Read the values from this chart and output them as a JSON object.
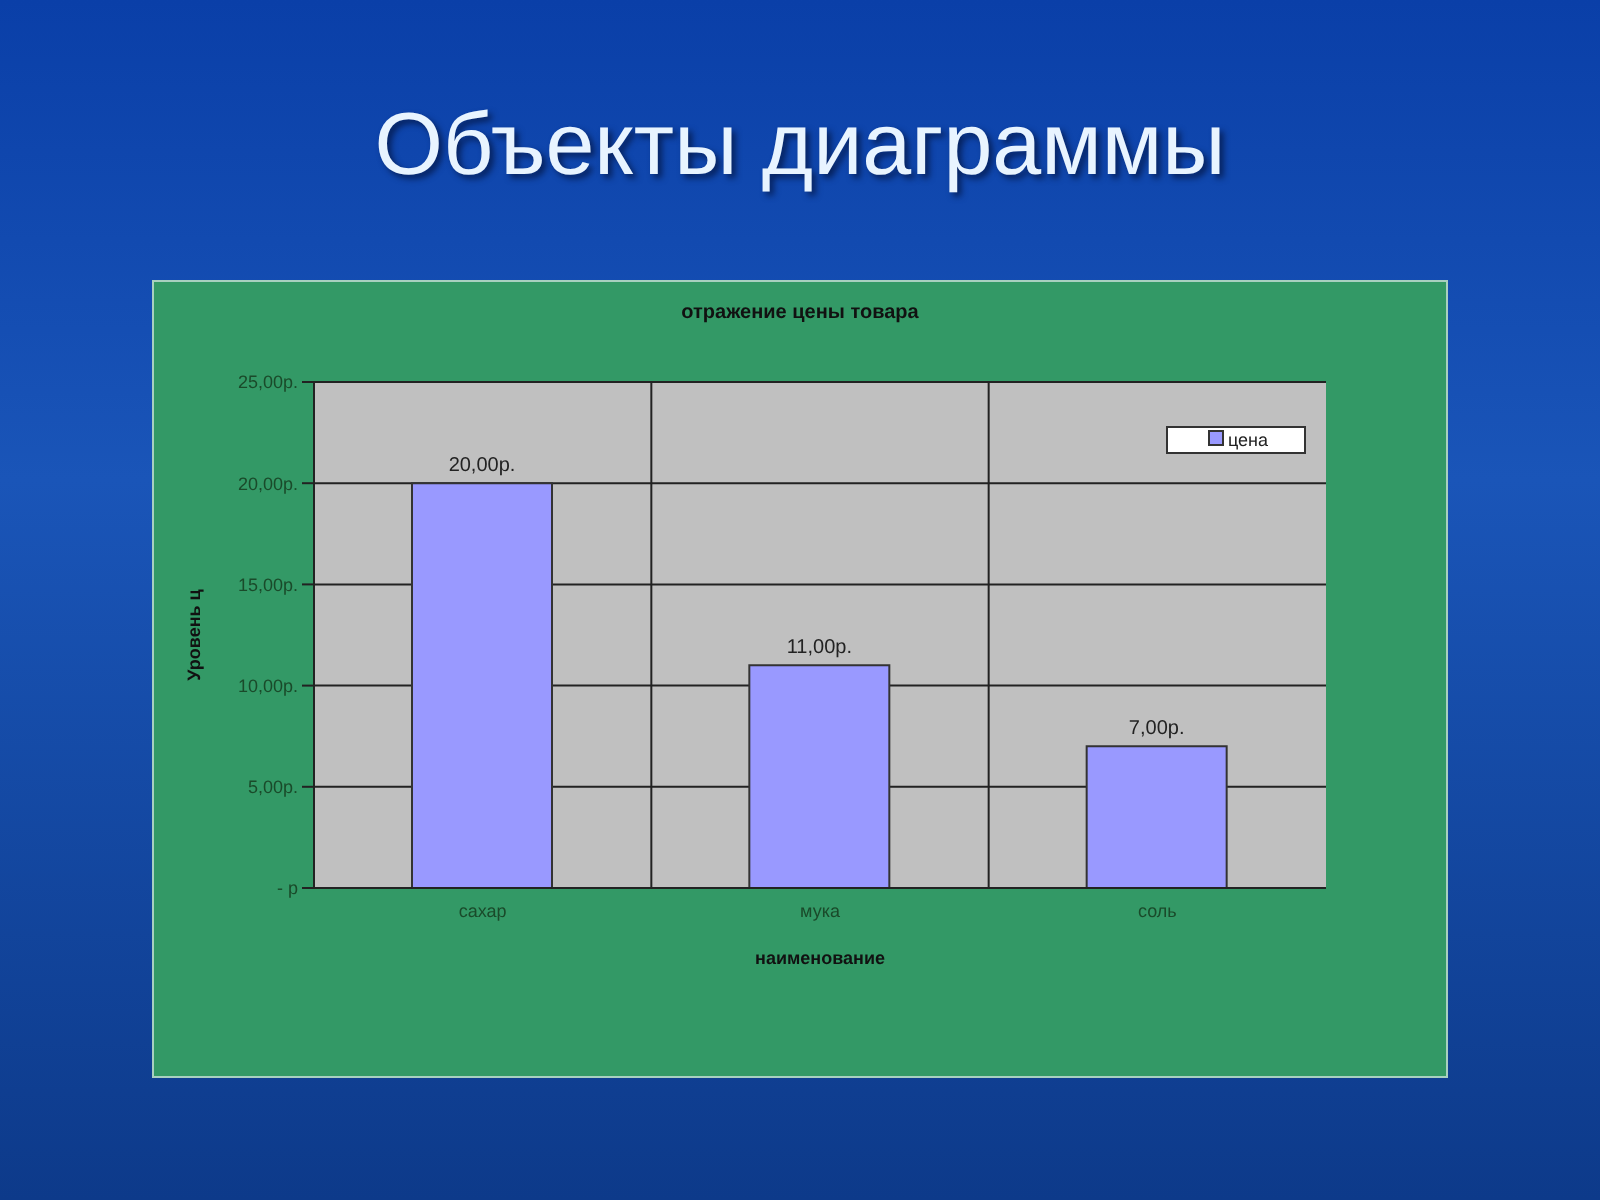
{
  "chart_data": {
    "type": "bar",
    "title": "Объекты диаграммы",
    "subtitle": "отражение цены товара",
    "xlabel": "наименование",
    "ylabel": "Уровень ц",
    "categories": [
      "сахар",
      "мука",
      "соль"
    ],
    "series": [
      {
        "name": "цена",
        "color": "#9999ff",
        "values": [
          20,
          11,
          7
        ],
        "value_labels": [
          "20,00р.",
          "11,00р.",
          "7,00р."
        ]
      }
    ],
    "ylim": [
      0,
      25
    ],
    "yticks": [
      {
        "value": 0,
        "label": "-   р"
      },
      {
        "value": 5,
        "label": "5,00р."
      },
      {
        "value": 10,
        "label": "10,00р."
      },
      {
        "value": 15,
        "label": "15,00р."
      },
      {
        "value": 20,
        "label": "20,00р."
      },
      {
        "value": 25,
        "label": "25,00р."
      }
    ],
    "grid": true,
    "legend": "top right"
  }
}
